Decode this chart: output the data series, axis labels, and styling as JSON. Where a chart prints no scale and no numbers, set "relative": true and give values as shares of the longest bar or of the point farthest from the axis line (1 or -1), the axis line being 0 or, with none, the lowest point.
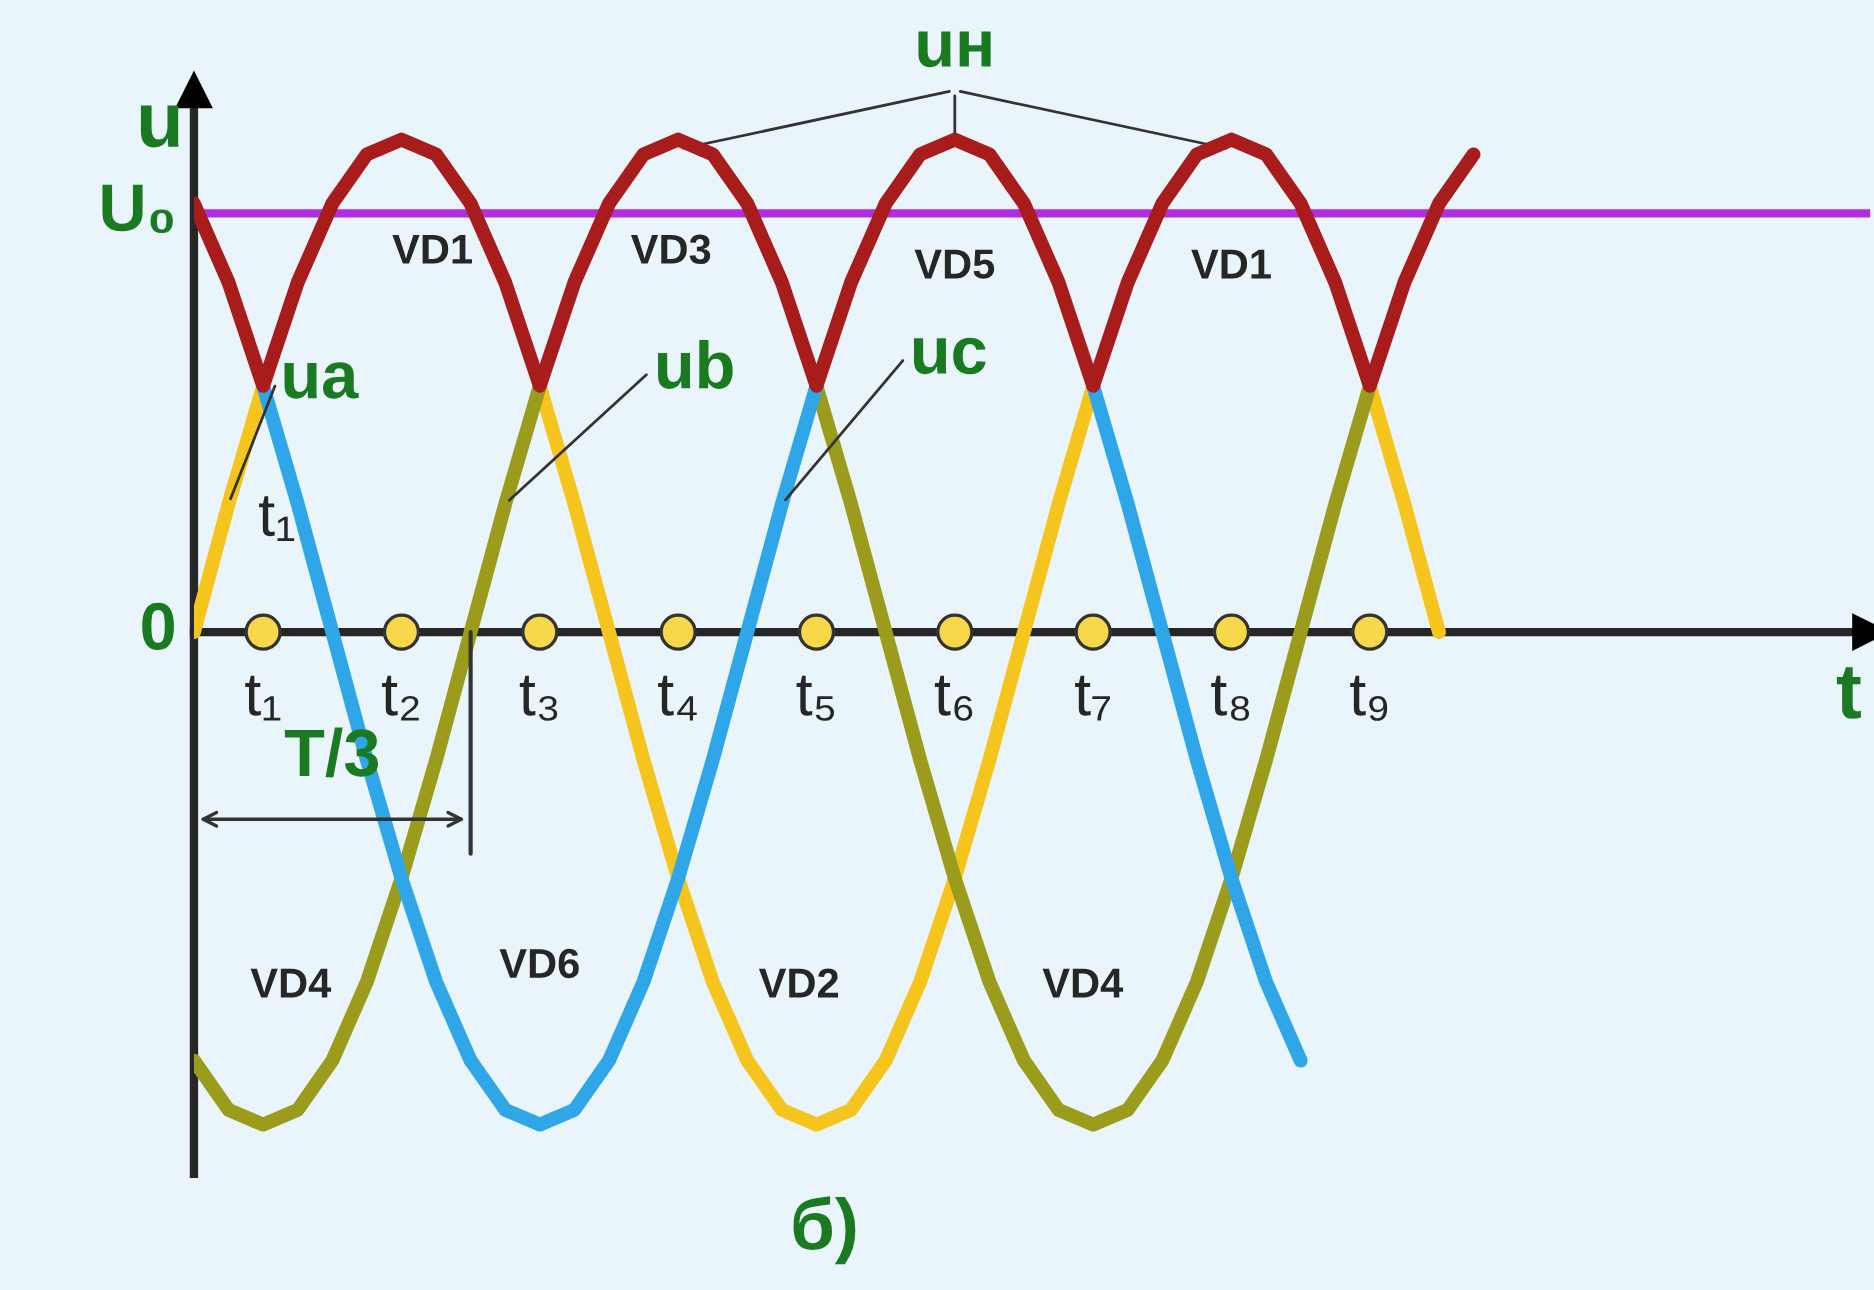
{
  "chart_data": {
    "type": "line",
    "relative": true,
    "xlabel": "t",
    "ylabel": "u",
    "tick_labels": "x",
    "categories": [
      null,
      null,
      "t₁",
      null,
      null,
      null,
      "t₂",
      null,
      null,
      null,
      "t₃",
      null,
      null,
      null,
      "t₄",
      null,
      null,
      null,
      "t₅",
      null,
      null,
      null,
      "t₆",
      null,
      null,
      null,
      "t₇",
      null,
      null,
      null,
      "t₈",
      null,
      null,
      null,
      "t₉",
      null,
      null,
      null
    ],
    "series": [
      {
        "name": "uн",
        "color": "#a81c1c",
        "values": [
          0.87,
          0.71,
          0.5,
          0.71,
          0.87,
          0.97,
          1,
          0.97,
          0.87,
          0.71,
          0.5,
          0.71,
          0.87,
          0.97,
          1,
          0.97,
          0.87,
          0.71,
          0.5,
          0.71,
          0.87,
          0.97,
          1,
          0.97,
          0.87,
          0.71,
          0.5,
          0.71,
          0.87,
          0.97,
          1,
          0.97,
          0.87,
          0.71,
          0.5,
          0.71,
          0.87,
          0.97
        ]
      },
      {
        "name": "ua",
        "color": "#f5c51e",
        "values": [
          0,
          0.26,
          0.5,
          null,
          null,
          null,
          null,
          null,
          null,
          null,
          0.5,
          0.26,
          0,
          -0.26,
          -0.5,
          -0.71,
          -0.87,
          -0.97,
          -1,
          -0.97,
          -0.87,
          -0.71,
          -0.5,
          -0.26,
          0,
          0.26,
          0.5,
          null,
          null,
          null,
          null,
          null,
          null,
          null,
          0.5,
          0.26,
          0,
          null
        ]
      },
      {
        "name": "ub",
        "color": "#9c9c1c",
        "values": [
          -0.87,
          -0.97,
          -1,
          -0.97,
          -0.87,
          -0.71,
          -0.5,
          -0.26,
          0,
          0.26,
          0.5,
          null,
          null,
          null,
          null,
          null,
          null,
          null,
          0.5,
          0.26,
          0,
          -0.26,
          -0.5,
          -0.71,
          -0.87,
          -0.97,
          -1,
          -0.97,
          -0.87,
          -0.71,
          -0.5,
          -0.26,
          0,
          0.26,
          0.5,
          null,
          null,
          null
        ]
      },
      {
        "name": "uc",
        "color": "#2ea6e8",
        "values": [
          null,
          null,
          0.5,
          0.26,
          0,
          -0.26,
          -0.5,
          -0.71,
          -0.87,
          -0.97,
          -1,
          -0.97,
          -0.87,
          -0.71,
          -0.5,
          -0.26,
          0,
          0.26,
          0.5,
          null,
          null,
          null,
          null,
          null,
          null,
          null,
          0.5,
          0.26,
          0,
          -0.26,
          -0.5,
          -0.71,
          -0.87,
          null,
          null,
          null,
          null,
          null
        ]
      },
      {
        "type": "scatter",
        "marker": "circle",
        "color": "#f7d84a",
        "values": [
          null,
          null,
          0,
          null,
          null,
          null,
          0,
          null,
          null,
          null,
          0,
          null,
          null,
          null,
          0,
          null,
          null,
          null,
          0,
          null,
          null,
          null,
          0,
          null,
          null,
          null,
          0,
          null,
          null,
          null,
          0,
          null,
          null,
          null,
          0,
          null,
          null,
          null
        ]
      }
    ],
    "ref_lines": [
      {
        "axis": "y",
        "value": 0.85,
        "label": "U₀",
        "color": "#b02ee0"
      }
    ],
    "annotations": [
      "0",
      "t₁",
      "VD1",
      "VD3",
      "VD5",
      "VD1",
      "VD4",
      "VD6",
      "VD2",
      "VD4",
      "T/3",
      "б)"
    ]
  }
}
